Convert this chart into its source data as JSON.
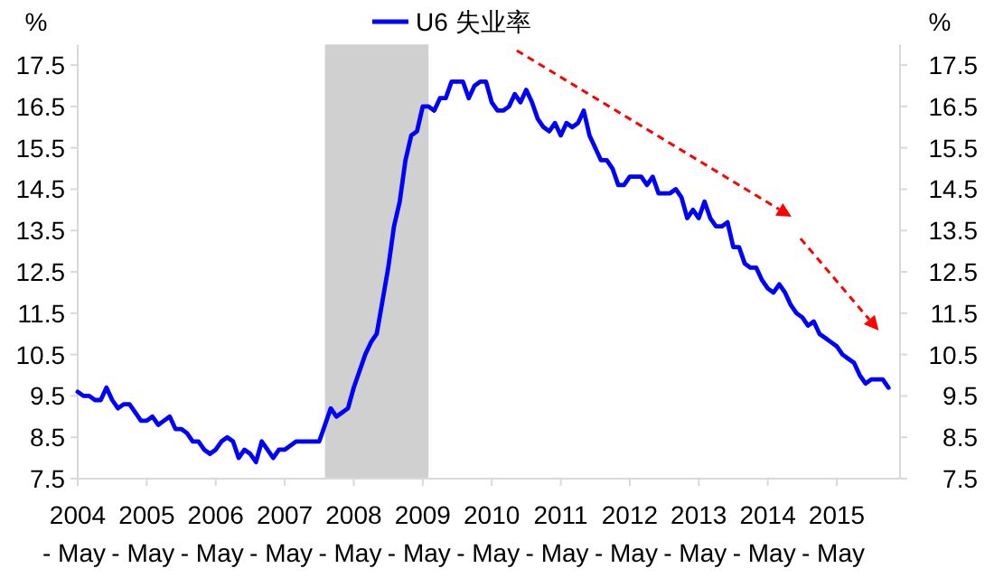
{
  "chart_data": {
    "type": "line",
    "ylabel": "%",
    "y2label": "%",
    "xlim": [
      "2004-05",
      "2016-04"
    ],
    "xticks": [
      {
        "value": "2004-05",
        "label": "2004 - May"
      },
      {
        "value": "2005-05",
        "label": "2005 - May"
      },
      {
        "value": "2006-05",
        "label": "2006 - May"
      },
      {
        "value": "2007-05",
        "label": "2007 - May"
      },
      {
        "value": "2008-05",
        "label": "2008 - May"
      },
      {
        "value": "2009-05",
        "label": "2009 - May"
      },
      {
        "value": "2010-05",
        "label": "2010 - May"
      },
      {
        "value": "2011-05",
        "label": "2011 - May"
      },
      {
        "value": "2012-05",
        "label": "2012 - May"
      },
      {
        "value": "2013-05",
        "label": "2013 - May"
      },
      {
        "value": "2014-05",
        "label": "2014 - May"
      },
      {
        "value": "2015-05",
        "label": "2015 - May"
      }
    ],
    "ylim": [
      7.5,
      18
    ],
    "yticks": [
      7.5,
      8.5,
      9.5,
      10.5,
      11.5,
      12.5,
      13.5,
      14.5,
      15.5,
      16.5,
      17.5
    ],
    "y2lim": [
      7.5,
      18
    ],
    "y2ticks": [
      7.5,
      8.5,
      9.5,
      10.5,
      11.5,
      12.5,
      13.5,
      14.5,
      15.5,
      16.5,
      17.5
    ],
    "legend": "top",
    "grid": false,
    "bands": [
      {
        "axis": "x",
        "from": "2007-12",
        "to": "2009-06",
        "color": "#d0d0d0"
      }
    ],
    "series": [
      {
        "name": "U6 失业率",
        "color": "#0000ff",
        "x": [
          "2004-05",
          "2004-06",
          "2004-07",
          "2004-08",
          "2004-09",
          "2004-10",
          "2004-11",
          "2004-12",
          "2005-01",
          "2005-02",
          "2005-03",
          "2005-04",
          "2005-05",
          "2005-06",
          "2005-07",
          "2005-08",
          "2005-09",
          "2005-10",
          "2005-11",
          "2005-12",
          "2006-01",
          "2006-02",
          "2006-03",
          "2006-04",
          "2006-05",
          "2006-06",
          "2006-07",
          "2006-08",
          "2006-09",
          "2006-10",
          "2006-11",
          "2006-12",
          "2007-01",
          "2007-02",
          "2007-03",
          "2007-04",
          "2007-05",
          "2007-06",
          "2007-07",
          "2007-08",
          "2007-09",
          "2007-10",
          "2007-11",
          "2007-12",
          "2008-01",
          "2008-02",
          "2008-03",
          "2008-04",
          "2008-05",
          "2008-06",
          "2008-07",
          "2008-08",
          "2008-09",
          "2008-10",
          "2008-11",
          "2008-12",
          "2009-01",
          "2009-02",
          "2009-03",
          "2009-04",
          "2009-05",
          "2009-06",
          "2009-07",
          "2009-08",
          "2009-09",
          "2009-10",
          "2009-11",
          "2009-12",
          "2010-01",
          "2010-02",
          "2010-03",
          "2010-04",
          "2010-05",
          "2010-06",
          "2010-07",
          "2010-08",
          "2010-09",
          "2010-10",
          "2010-11",
          "2010-12",
          "2011-01",
          "2011-02",
          "2011-03",
          "2011-04",
          "2011-05",
          "2011-06",
          "2011-07",
          "2011-08",
          "2011-09",
          "2011-10",
          "2011-11",
          "2011-12",
          "2012-01",
          "2012-02",
          "2012-03",
          "2012-04",
          "2012-05",
          "2012-06",
          "2012-07",
          "2012-08",
          "2012-09",
          "2012-10",
          "2012-11",
          "2012-12",
          "2013-01",
          "2013-02",
          "2013-03",
          "2013-04",
          "2013-05",
          "2013-06",
          "2013-07",
          "2013-08",
          "2013-09",
          "2013-10",
          "2013-11",
          "2013-12",
          "2014-01",
          "2014-02",
          "2014-03",
          "2014-04",
          "2014-05",
          "2014-06",
          "2014-07",
          "2014-08",
          "2014-09",
          "2014-10",
          "2014-11",
          "2014-12",
          "2015-01",
          "2015-02",
          "2015-03",
          "2015-04",
          "2015-05",
          "2015-06",
          "2015-07",
          "2015-08",
          "2015-09",
          "2015-10",
          "2015-11",
          "2015-12",
          "2016-01",
          "2016-02"
        ],
        "values": [
          9.6,
          9.5,
          9.5,
          9.4,
          9.4,
          9.7,
          9.4,
          9.2,
          9.3,
          9.3,
          9.1,
          8.9,
          8.9,
          9.0,
          8.8,
          8.9,
          9.0,
          8.7,
          8.7,
          8.6,
          8.4,
          8.4,
          8.2,
          8.1,
          8.2,
          8.4,
          8.5,
          8.4,
          8.0,
          8.2,
          8.1,
          7.9,
          8.4,
          8.2,
          8.0,
          8.2,
          8.2,
          8.3,
          8.4,
          8.4,
          8.4,
          8.4,
          8.4,
          8.8,
          9.2,
          9.0,
          9.1,
          9.2,
          9.7,
          10.1,
          10.5,
          10.8,
          11.0,
          11.8,
          12.6,
          13.6,
          14.2,
          15.2,
          15.8,
          15.9,
          16.5,
          16.5,
          16.4,
          16.7,
          16.7,
          17.1,
          17.1,
          17.1,
          16.7,
          17.0,
          17.1,
          17.1,
          16.6,
          16.4,
          16.4,
          16.5,
          16.8,
          16.6,
          16.9,
          16.6,
          16.2,
          16.0,
          15.9,
          16.1,
          15.8,
          16.1,
          16.0,
          16.1,
          16.4,
          15.8,
          15.5,
          15.2,
          15.2,
          15.0,
          14.6,
          14.6,
          14.8,
          14.8,
          14.8,
          14.6,
          14.8,
          14.4,
          14.4,
          14.4,
          14.5,
          14.3,
          13.8,
          14.0,
          13.8,
          14.2,
          13.8,
          13.6,
          13.6,
          13.7,
          13.1,
          13.1,
          12.7,
          12.6,
          12.6,
          12.3,
          12.1,
          12.0,
          12.2,
          12.0,
          11.7,
          11.5,
          11.4,
          11.2,
          11.3,
          11.0,
          10.9,
          10.8,
          10.7,
          10.5,
          10.4,
          10.3,
          10.0,
          9.8,
          9.9,
          9.9,
          9.9,
          9.7
        ]
      }
    ]
  }
}
